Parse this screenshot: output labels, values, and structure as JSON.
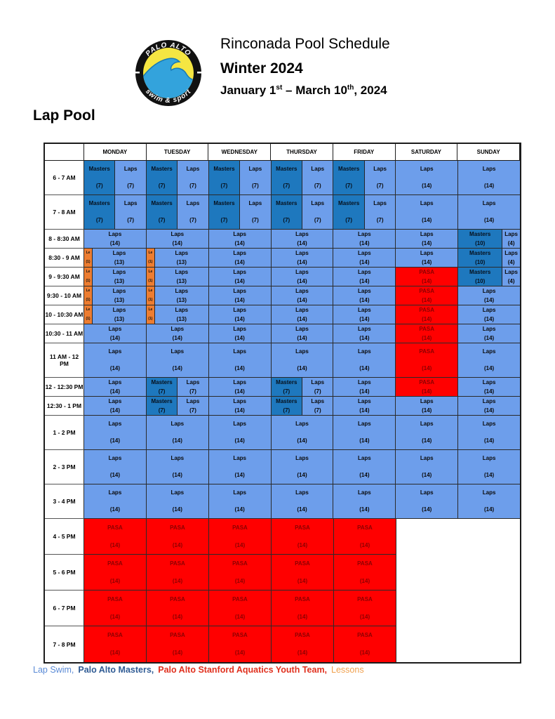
{
  "header": {
    "logo": {
      "top_text": "PALO ALTO",
      "bottom_text": "swim & sport"
    },
    "title": "Rinconada Pool Schedule",
    "subtitle": "Winter 2024",
    "date_range": {
      "p1": "January 1",
      "sup1": "st",
      "p2": " – March 10",
      "sup2": "th",
      "p3": ", 2024"
    }
  },
  "section_title": "Lap Pool",
  "colors": {
    "laps_bg": "#6D9EEB",
    "masters_bg": "#1E78BE",
    "pasa_bg": "#FF0000",
    "pasa_text": "#8B0000",
    "lessons_bg": "#ED7D31",
    "logo_yellow": "#F5E642",
    "logo_wave_blue": "#33A3DC"
  },
  "schedule": {
    "days": [
      "MONDAY",
      "TUESDAY",
      "WEDNESDAY",
      "THURSDAY",
      "FRIDAY",
      "SATURDAY",
      "SUNDAY"
    ],
    "tokens": {
      "M7": {
        "label": "Masters",
        "count": "(7)",
        "type": "masters",
        "w": 1
      },
      "M10": {
        "label": "Masters",
        "count": "(10)",
        "type": "masters",
        "w": 10
      },
      "L4": {
        "label": "Laps",
        "count": "(4)",
        "type": "laps",
        "w": 4
      },
      "L7": {
        "label": "Laps",
        "count": "(7)",
        "type": "laps",
        "w": 1
      },
      "L13": {
        "label": "Laps",
        "count": "(13)",
        "type": "laps",
        "w": 1
      },
      "L14": {
        "label": "Laps",
        "count": "(14)",
        "type": "laps",
        "w": 1
      },
      "P14": {
        "label": "PASA",
        "count": "(14)",
        "type": "pasa",
        "w": 1
      },
      "LE": {
        "label": "Le",
        "count": "(1)",
        "type": "lessons",
        "w": 0
      },
      "E": {
        "type": "empty",
        "w": 1
      }
    },
    "rows": [
      {
        "time": "6 - 7 AM",
        "size": "tall",
        "cells": [
          [
            "M7",
            "L7"
          ],
          [
            "M7",
            "L7"
          ],
          [
            "M7",
            "L7"
          ],
          [
            "M7",
            "L7"
          ],
          [
            "M7",
            "L7"
          ],
          [
            "L14"
          ],
          [
            "L14"
          ]
        ]
      },
      {
        "time": "7 - 8 AM",
        "size": "tall",
        "cells": [
          [
            "M7",
            "L7"
          ],
          [
            "M7",
            "L7"
          ],
          [
            "M7",
            "L7"
          ],
          [
            "M7",
            "L7"
          ],
          [
            "M7",
            "L7"
          ],
          [
            "L14"
          ],
          [
            "L14"
          ]
        ]
      },
      {
        "time": "8 - 8:30 AM",
        "size": "short",
        "cells": [
          [
            "L14"
          ],
          [
            "L14"
          ],
          [
            "L14"
          ],
          [
            "L14"
          ],
          [
            "L14"
          ],
          [
            "L14"
          ],
          [
            "M10",
            "L4"
          ]
        ]
      },
      {
        "time": "8:30 - 9 AM",
        "size": "short",
        "cells": [
          [
            "LE",
            "L13"
          ],
          [
            "LE",
            "L13"
          ],
          [
            "L14"
          ],
          [
            "L14"
          ],
          [
            "L14"
          ],
          [
            "L14"
          ],
          [
            "M10",
            "L4"
          ]
        ]
      },
      {
        "time": "9 - 9:30 AM",
        "size": "short",
        "cells": [
          [
            "LE",
            "L13"
          ],
          [
            "LE",
            "L13"
          ],
          [
            "L14"
          ],
          [
            "L14"
          ],
          [
            "L14"
          ],
          [
            "P14"
          ],
          [
            "M10",
            "L4"
          ]
        ]
      },
      {
        "time": "9:30 - 10 AM",
        "size": "short",
        "cells": [
          [
            "LE",
            "L13"
          ],
          [
            "LE",
            "L13"
          ],
          [
            "L14"
          ],
          [
            "L14"
          ],
          [
            "L14"
          ],
          [
            "P14"
          ],
          [
            "L14"
          ]
        ]
      },
      {
        "time": "10 - 10:30 AM",
        "size": "short",
        "cells": [
          [
            "LE",
            "L13"
          ],
          [
            "LE",
            "L13"
          ],
          [
            "L14"
          ],
          [
            "L14"
          ],
          [
            "L14"
          ],
          [
            "P14"
          ],
          [
            "L14"
          ]
        ]
      },
      {
        "time": "10:30 - 11 AM",
        "size": "short",
        "cells": [
          [
            "L14"
          ],
          [
            "L14"
          ],
          [
            "L14"
          ],
          [
            "L14"
          ],
          [
            "L14"
          ],
          [
            "P14"
          ],
          [
            "L14"
          ]
        ]
      },
      {
        "time": "11 AM - 12 PM",
        "size": "tall",
        "cells": [
          [
            "L14"
          ],
          [
            "L14"
          ],
          [
            "L14"
          ],
          [
            "L14"
          ],
          [
            "L14"
          ],
          [
            "P14"
          ],
          [
            "L14"
          ]
        ]
      },
      {
        "time": "12 - 12:30 PM",
        "size": "short",
        "cells": [
          [
            "L14"
          ],
          [
            "M7",
            "L7"
          ],
          [
            "L14"
          ],
          [
            "M7",
            "L7"
          ],
          [
            "L14"
          ],
          [
            "P14"
          ],
          [
            "L14"
          ]
        ]
      },
      {
        "time": "12:30 - 1 PM",
        "size": "short",
        "cells": [
          [
            "L14"
          ],
          [
            "M7",
            "L7"
          ],
          [
            "L14"
          ],
          [
            "M7",
            "L7"
          ],
          [
            "L14"
          ],
          [
            "L14"
          ],
          [
            "L14"
          ]
        ]
      },
      {
        "time": "1 - 2 PM",
        "size": "tall",
        "cells": [
          [
            "L14"
          ],
          [
            "L14"
          ],
          [
            "L14"
          ],
          [
            "L14"
          ],
          [
            "L14"
          ],
          [
            "L14"
          ],
          [
            "L14"
          ]
        ]
      },
      {
        "time": "2 - 3 PM",
        "size": "tall",
        "cells": [
          [
            "L14"
          ],
          [
            "L14"
          ],
          [
            "L14"
          ],
          [
            "L14"
          ],
          [
            "L14"
          ],
          [
            "L14"
          ],
          [
            "L14"
          ]
        ]
      },
      {
        "time": "3 - 4 PM",
        "size": "tall",
        "cells": [
          [
            "L14"
          ],
          [
            "L14"
          ],
          [
            "L14"
          ],
          [
            "L14"
          ],
          [
            "L14"
          ],
          [
            "L14"
          ],
          [
            "L14"
          ]
        ]
      },
      {
        "time": "4 - 5 PM",
        "size": "eve",
        "cells": [
          [
            "P14"
          ],
          [
            "P14"
          ],
          [
            "P14"
          ],
          [
            "P14"
          ],
          [
            "P14"
          ],
          [
            "E"
          ],
          [
            "E"
          ]
        ]
      },
      {
        "time": "5 - 6 PM",
        "size": "eve",
        "cells": [
          [
            "P14"
          ],
          [
            "P14"
          ],
          [
            "P14"
          ],
          [
            "P14"
          ],
          [
            "P14"
          ],
          [
            "E"
          ],
          [
            "E"
          ]
        ]
      },
      {
        "time": "6 - 7 PM",
        "size": "eve",
        "cells": [
          [
            "P14"
          ],
          [
            "P14"
          ],
          [
            "P14"
          ],
          [
            "P14"
          ],
          [
            "P14"
          ],
          [
            "E"
          ],
          [
            "E"
          ]
        ]
      },
      {
        "time": "7 - 8 PM",
        "size": "eve",
        "cells": [
          [
            "P14"
          ],
          [
            "P14"
          ],
          [
            "P14"
          ],
          [
            "P14"
          ],
          [
            "P14"
          ],
          [
            "E"
          ],
          [
            "E"
          ]
        ]
      }
    ]
  },
  "legend": {
    "items": [
      {
        "text": "Lap Swim,",
        "color": "#5B8BD6",
        "bold": false
      },
      {
        "text": "Palo Alto Masters,",
        "color": "#2F5B94",
        "bold": true
      },
      {
        "text": "Palo Alto Stanford Aquatics Youth Team,",
        "color": "#E0301E",
        "bold": true
      },
      {
        "text": "Lessons",
        "color": "#F0A04D",
        "bold": false
      }
    ]
  }
}
